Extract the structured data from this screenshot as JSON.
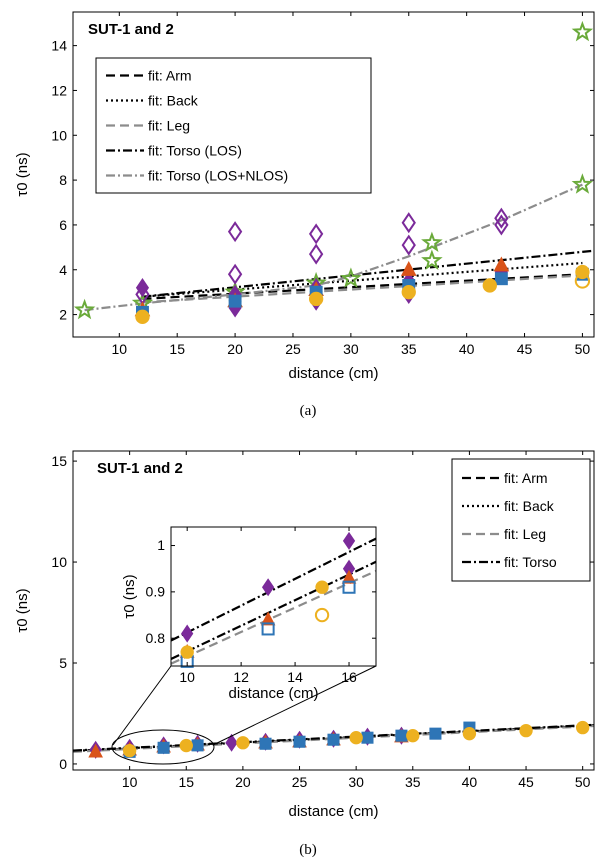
{
  "chart_data": [
    {
      "type": "scatter",
      "panel": "(a)",
      "title": "SUT-1 and 2",
      "xlabel": "distance (cm)",
      "ylabel": "τ0 (ns)",
      "xlim": [
        6,
        51
      ],
      "ylim": [
        1,
        15.5
      ],
      "xticks": [
        "10",
        "15",
        "20",
        "25",
        "30",
        "35",
        "40",
        "45",
        "50"
      ],
      "yticks": [
        "2",
        "4",
        "6",
        "8",
        "10",
        "12",
        "14"
      ],
      "legend_position": "top-left",
      "series": [
        {
          "name": "fit: Arm",
          "kind": "fit",
          "dash": "long",
          "color": "#000000",
          "x": [
            12,
            50
          ],
          "y": [
            2.7,
            3.8
          ]
        },
        {
          "name": "fit: Back",
          "kind": "fit",
          "dash": "dot",
          "color": "#000000",
          "x": [
            12,
            50
          ],
          "y": [
            2.8,
            4.3
          ]
        },
        {
          "name": "fit: Leg",
          "kind": "fit",
          "dash": "long",
          "color": "#8c8c8c",
          "x": [
            12,
            50
          ],
          "y": [
            2.55,
            3.75
          ]
        },
        {
          "name": "fit: Torso (LOS)",
          "kind": "fit",
          "dash": "dashdot",
          "color": "#000000",
          "x": [
            12,
            51
          ],
          "y": [
            2.8,
            4.85
          ]
        },
        {
          "name": "fit: Torso (LOS+NLOS)",
          "kind": "fit",
          "dash": "dashdot",
          "color": "#8c8c8c",
          "x": [
            7,
            12,
            20,
            27,
            30,
            35,
            43,
            50
          ],
          "y": [
            2.2,
            2.5,
            2.9,
            3.3,
            3.7,
            4.6,
            6.2,
            7.8
          ]
        },
        {
          "marker": "star",
          "color": "#6aaa3a",
          "x": [
            7,
            12,
            20,
            27,
            30,
            37,
            37,
            50,
            50
          ],
          "y": [
            2.2,
            2.5,
            3.0,
            3.4,
            3.6,
            5.2,
            4.4,
            7.8,
            14.6
          ]
        },
        {
          "marker": "diamond-open",
          "color": "#7b2a9a",
          "x": [
            12,
            20,
            20,
            27,
            27,
            35,
            35,
            43,
            43
          ],
          "y": [
            2.9,
            5.7,
            3.8,
            5.6,
            4.7,
            6.1,
            5.1,
            6.3,
            6.0
          ]
        },
        {
          "marker": "diamond",
          "color": "#7b2a9a",
          "x": [
            12,
            20,
            20,
            27,
            27,
            35,
            35,
            43
          ],
          "y": [
            3.2,
            2.9,
            2.3,
            3.2,
            2.6,
            3.5,
            2.9,
            3.9
          ]
        },
        {
          "marker": "triangle",
          "color": "#d95319",
          "x": [
            12,
            20,
            27,
            35,
            43
          ],
          "y": [
            2.2,
            2.6,
            3.1,
            4.0,
            4.2
          ]
        },
        {
          "marker": "square",
          "color": "#2e75b6",
          "x": [
            12,
            20,
            27,
            35,
            43,
            50
          ],
          "y": [
            2.1,
            2.6,
            3.0,
            3.3,
            3.6,
            3.8
          ]
        },
        {
          "marker": "circle",
          "color": "#edb120",
          "x": [
            12,
            27,
            35,
            42,
            50
          ],
          "y": [
            1.9,
            2.7,
            3.0,
            3.3,
            3.9
          ]
        },
        {
          "marker": "circle-open",
          "color": "#edb120",
          "x": [
            50
          ],
          "y": [
            3.5
          ]
        }
      ]
    },
    {
      "type": "scatter",
      "panel": "(b)",
      "title": "SUT-1 and 2",
      "xlabel": "distance (cm)",
      "ylabel": "τ0 (ns)",
      "xlim": [
        5,
        51
      ],
      "ylim": [
        -0.3,
        15.5
      ],
      "xticks": [
        "10",
        "15",
        "20",
        "25",
        "30",
        "35",
        "40",
        "45",
        "50"
      ],
      "yticks": [
        "0",
        "5",
        "10",
        "15"
      ],
      "legend_position": "top-right",
      "series": [
        {
          "name": "fit: Arm",
          "kind": "fit",
          "dash": "long",
          "color": "#000000",
          "x": [
            5,
            51
          ],
          "y": [
            0.62,
            1.9
          ]
        },
        {
          "name": "fit: Back",
          "kind": "fit",
          "dash": "dot",
          "color": "#000000",
          "x": [
            5,
            51
          ],
          "y": [
            0.64,
            1.92
          ]
        },
        {
          "name": "fit: Leg",
          "kind": "fit",
          "dash": "long",
          "color": "#8c8c8c",
          "x": [
            5,
            51
          ],
          "y": [
            0.6,
            1.88
          ]
        },
        {
          "name": "fit: Torso",
          "kind": "fit",
          "dash": "dashdot",
          "color": "#000000",
          "x": [
            5,
            51
          ],
          "y": [
            0.66,
            1.94
          ]
        },
        {
          "marker": "diamond",
          "color": "#7b2a9a",
          "x": [
            7,
            10,
            13,
            16,
            19,
            22,
            25,
            28,
            31,
            34
          ],
          "y": [
            0.7,
            0.8,
            0.92,
            1.0,
            1.05,
            1.1,
            1.2,
            1.25,
            1.35,
            1.4
          ]
        },
        {
          "marker": "triangle",
          "color": "#d95319",
          "x": [
            7,
            10,
            13,
            16,
            22,
            25,
            28,
            34
          ],
          "y": [
            0.6,
            0.7,
            0.85,
            0.95,
            1.05,
            1.1,
            1.2,
            1.35
          ]
        },
        {
          "marker": "square",
          "color": "#2e75b6",
          "x": [
            10,
            13,
            16,
            22,
            25,
            28,
            31,
            34,
            37,
            40
          ],
          "y": [
            0.6,
            0.8,
            0.92,
            1.0,
            1.1,
            1.2,
            1.3,
            1.4,
            1.5,
            1.8
          ]
        },
        {
          "marker": "circle",
          "color": "#edb120",
          "x": [
            10,
            15,
            20,
            30,
            35,
            40,
            45,
            50
          ],
          "y": [
            0.66,
            0.91,
            1.05,
            1.3,
            1.4,
            1.5,
            1.65,
            1.8
          ]
        }
      ],
      "inset": {
        "xlabel": "distance (cm)",
        "ylabel": "τ0 (ns)",
        "xlim": [
          9.4,
          17
        ],
        "ylim": [
          0.74,
          1.04
        ],
        "xticks": [
          "10",
          "12",
          "14",
          "16"
        ],
        "yticks": [
          "0.8",
          "0.9",
          "1"
        ],
        "series": [
          {
            "kind": "fit",
            "dash": "dashdot",
            "color": "#000000",
            "x": [
              9.4,
              17
            ],
            "y": [
              0.795,
              1.015
            ]
          },
          {
            "kind": "fit",
            "dash": "dashdot",
            "color": "#000000",
            "x": [
              9.4,
              17
            ],
            "y": [
              0.755,
              0.965
            ]
          },
          {
            "kind": "fit",
            "dash": "long",
            "color": "#8c8c8c",
            "x": [
              9.4,
              17
            ],
            "y": [
              0.745,
              0.945
            ]
          },
          {
            "marker": "diamond",
            "color": "#7b2a9a",
            "x": [
              10,
              13,
              16,
              16
            ],
            "y": [
              0.81,
              0.91,
              0.95,
              1.01
            ]
          },
          {
            "marker": "triangle",
            "color": "#d95319",
            "x": [
              10,
              13,
              16
            ],
            "y": [
              0.77,
              0.84,
              0.93
            ]
          },
          {
            "marker": "square-open",
            "color": "#2e75b6",
            "x": [
              10,
              13,
              16
            ],
            "y": [
              0.75,
              0.82,
              0.91
            ]
          },
          {
            "marker": "circle",
            "color": "#edb120",
            "x": [
              15,
              10
            ],
            "y": [
              0.91,
              0.77
            ]
          },
          {
            "marker": "circle-open",
            "color": "#edb120",
            "x": [
              15
            ],
            "y": [
              0.85
            ]
          }
        ]
      }
    }
  ],
  "captions": {
    "a": "(a)",
    "b": "(b)"
  },
  "legend_label_b_arm": "fit: Arm"
}
